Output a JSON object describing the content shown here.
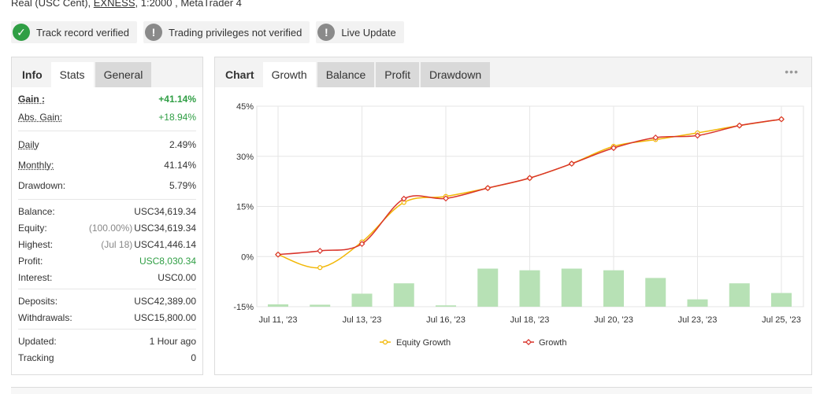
{
  "header": {
    "account_prefix": "Real (USC Cent), ",
    "broker": "EXNESS",
    "account_suffix": ", 1:2000 , MetaTrader 4"
  },
  "badges": [
    {
      "label": "Track record verified",
      "icon": "check-icon",
      "color": "#2f9e44"
    },
    {
      "label": "Trading privileges not verified",
      "icon": "exclamation-icon",
      "color": "#8a8a8a"
    },
    {
      "label": "Live Update",
      "icon": "exclamation-icon",
      "color": "#8a8a8a"
    }
  ],
  "left_panel": {
    "tabs": [
      "Info",
      "Stats",
      "General"
    ],
    "stats": {
      "gain_label": "Gain :",
      "gain_value": "+41.14%",
      "abs_gain_label": "Abs. Gain:",
      "abs_gain_value": "+18.94%",
      "daily_label": "Daily",
      "daily_value": "2.49%",
      "monthly_label": "Monthly:",
      "monthly_value": "41.14%",
      "drawdown_label": "Drawdown:",
      "drawdown_value": "5.79%",
      "balance_label": "Balance:",
      "balance_value": "USC34,619.34",
      "equity_label": "Equity:",
      "equity_sub": "(100.00%)",
      "equity_value": "USC34,619.34",
      "highest_label": "Highest:",
      "highest_sub": "(Jul 18)",
      "highest_value": "USC41,446.14",
      "profit_label": "Profit:",
      "profit_value": "USC8,030.34",
      "interest_label": "Interest:",
      "interest_value": "USC0.00",
      "deposits_label": "Deposits:",
      "deposits_value": "USC42,389.00",
      "withdrawals_label": "Withdrawals:",
      "withdrawals_value": "USC15,800.00",
      "updated_label": "Updated:",
      "updated_value": "1 Hour ago",
      "tracking_label": "Tracking",
      "tracking_value": "0"
    }
  },
  "right_panel": {
    "tabs": [
      "Chart",
      "Growth",
      "Balance",
      "Profit",
      "Drawdown"
    ],
    "more_label": "•••"
  },
  "chart_data": {
    "type": "line",
    "title": "",
    "xlabel": "",
    "ylabel": "",
    "ylim": [
      -15,
      45
    ],
    "yticks": [
      "45%",
      "30%",
      "15%",
      "0%",
      "-15%"
    ],
    "ytick_values": [
      45,
      30,
      15,
      0,
      -15
    ],
    "x_tick_labels": [
      "Jul 11, '23",
      "Jul 13, '23",
      "Jul 16, '23",
      "Jul 18, '23",
      "Jul 20, '23",
      "Jul 23, '23",
      "Jul 25, '23"
    ],
    "x_tick_index": [
      0,
      2,
      4,
      6,
      8,
      10,
      12
    ],
    "grid": true,
    "legend_position": "bottom",
    "series": [
      {
        "name": "Equity Growth",
        "color": "#f2b705",
        "marker": "circle",
        "values": [
          0.6,
          -3.3,
          4.4,
          16.2,
          18.0,
          20.5,
          23.5,
          27.8,
          33.0,
          35.0,
          37.0,
          39.2,
          41.1
        ]
      },
      {
        "name": "Growth",
        "color": "#d9342b",
        "marker": "diamond",
        "values": [
          0.6,
          1.7,
          3.8,
          17.3,
          17.4,
          20.5,
          23.5,
          27.8,
          32.5,
          35.6,
          36.2,
          39.2,
          41.1
        ]
      },
      {
        "name": "Daily bars",
        "color": "#b7e1b5",
        "values": [
          0.7,
          0.6,
          3.9,
          7.0,
          0.4,
          11.4,
          10.9,
          11.4,
          10.9,
          8.6,
          2.2,
          7.0,
          4.1
        ]
      }
    ]
  }
}
